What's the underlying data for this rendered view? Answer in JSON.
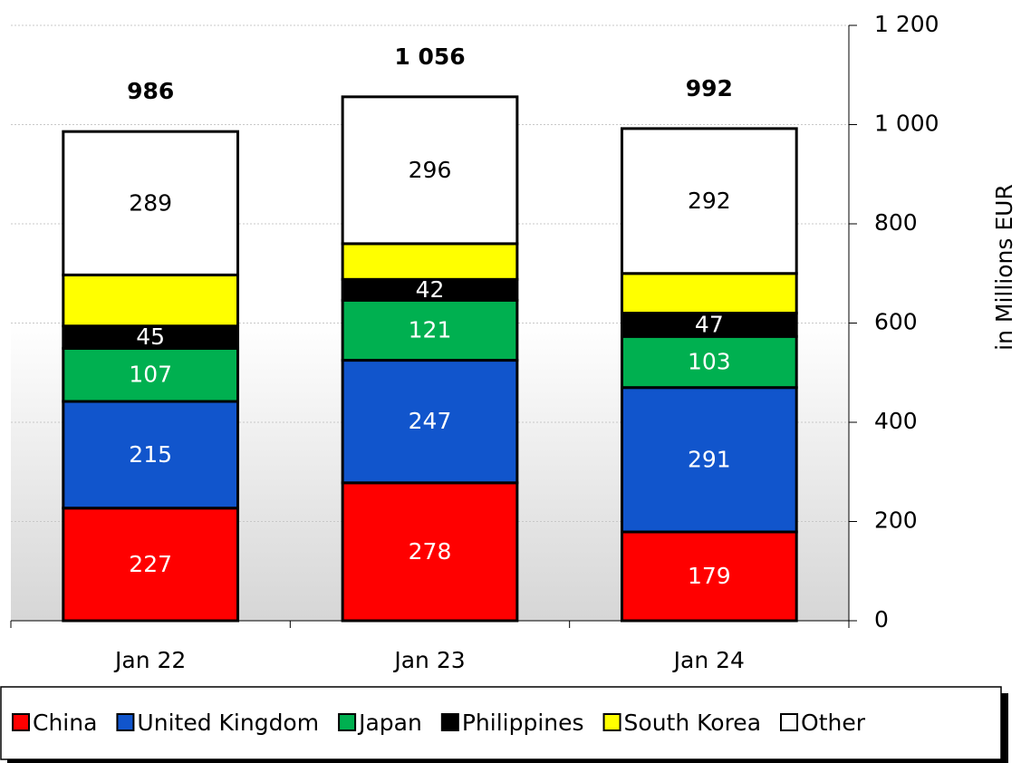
{
  "chart_data": {
    "type": "stacked_bar",
    "categories": [
      "Jan 22",
      "Jan 23",
      "Jan 24"
    ],
    "series": [
      {
        "name": "China",
        "color": "#ff0000",
        "values": [
          227,
          278,
          179
        ]
      },
      {
        "name": "United Kingdom",
        "color": "#1155cc",
        "values": [
          215,
          247,
          291
        ]
      },
      {
        "name": "Japan",
        "color": "#00b050",
        "values": [
          107,
          121,
          103
        ]
      },
      {
        "name": "Philippines",
        "color": "#000000",
        "values": [
          45,
          42,
          47
        ]
      },
      {
        "name": "South Korea",
        "color": "#ffff00",
        "values": [
          103,
          72,
          80
        ]
      },
      {
        "name": "Other",
        "color": "#ffffff",
        "values": [
          289,
          296,
          292
        ]
      }
    ],
    "labeled_series": [
      "China",
      "United Kingdom",
      "Japan",
      "Philippines",
      "Other"
    ],
    "totals": {
      "values": [
        986,
        1056,
        992
      ],
      "value_labels": [
        "986",
        "1 056",
        "992"
      ]
    },
    "y_axis_label": "in Millions EUR",
    "ylim": [
      0,
      1200
    ],
    "yticks": [
      0,
      200,
      400,
      600,
      800,
      {
        "value": 1000,
        "label": "1 000"
      },
      {
        "value": 1200,
        "label": "1 200"
      }
    ],
    "grid": true,
    "legend": "bottom"
  }
}
